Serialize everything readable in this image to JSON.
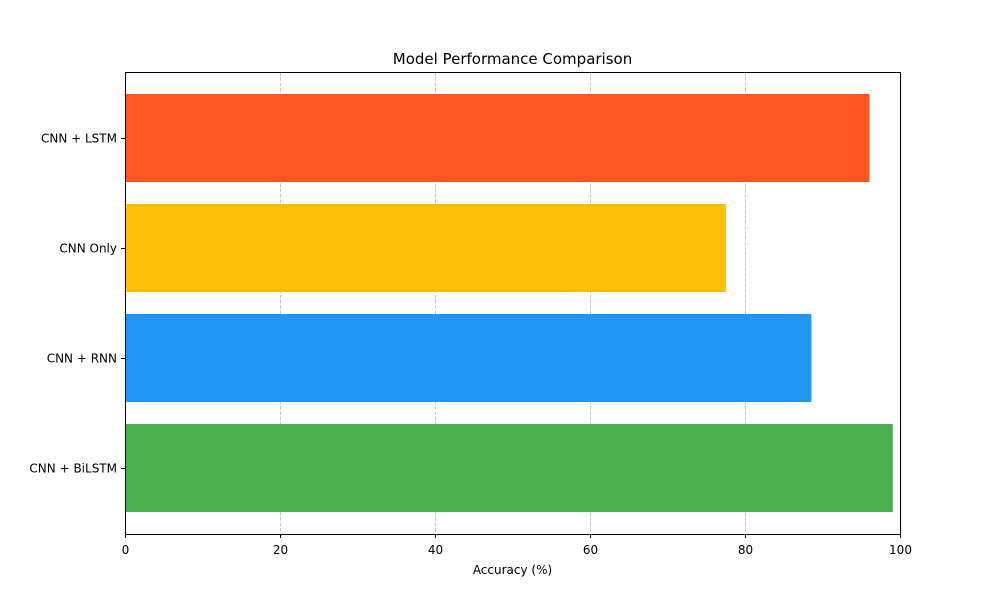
{
  "chart_data": {
    "type": "bar",
    "orientation": "horizontal",
    "title": "Model Performance Comparison",
    "xlabel": "Accuracy (%)",
    "ylabel": "",
    "xlim": [
      0,
      100
    ],
    "xticks": [
      0,
      20,
      40,
      60,
      80,
      100
    ],
    "grid": "vertical dashed",
    "legend": "none",
    "categories": [
      "CNN + LSTM",
      "CNN Only",
      "CNN + RNN",
      "CNN + BiLSTM"
    ],
    "values": [
      96,
      77.5,
      88.5,
      99
    ],
    "colors": [
      "#ff5722",
      "#ffc107",
      "#2196f3",
      "#4caf50"
    ]
  }
}
